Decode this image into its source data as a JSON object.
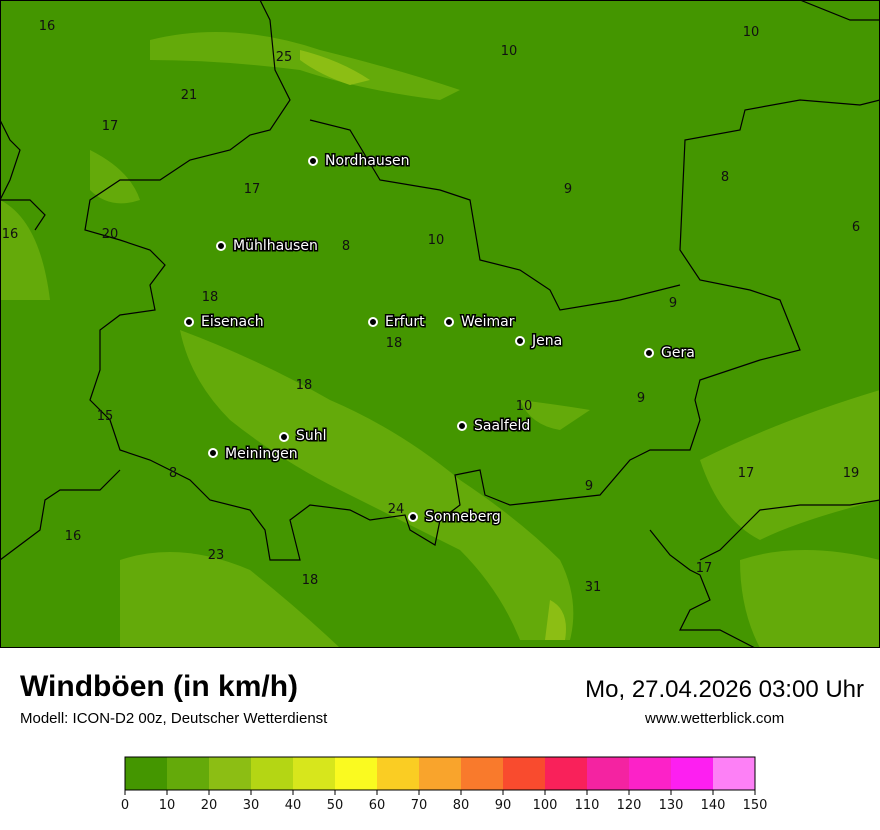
{
  "title": "Windböen (in km/h)",
  "model": "Modell: ICON-D2 00z, Deutscher Wetterdienst",
  "datetime": "Mo, 27.04.2026 03:00 Uhr",
  "website": "www.wetterblick.com",
  "cities": [
    {
      "name": "Nordhausen"
    },
    {
      "name": "Mühlhausen"
    },
    {
      "name": "Eisenach"
    },
    {
      "name": "Erfurt"
    },
    {
      "name": "Weimar"
    },
    {
      "name": "Jena"
    },
    {
      "name": "Gera"
    },
    {
      "name": "Saalfeld"
    },
    {
      "name": "Suhl"
    },
    {
      "name": "Meiningen"
    },
    {
      "name": "Sonneberg"
    }
  ],
  "values": [
    "16",
    "10",
    "10",
    "25",
    "21",
    "17",
    "17",
    "9",
    "8",
    "16",
    "20",
    "8",
    "10",
    "6",
    "18",
    "9",
    "18",
    "18",
    "9",
    "15",
    "10",
    "8",
    "17",
    "19",
    "9",
    "24",
    "16",
    "23",
    "18",
    "17",
    "31"
  ],
  "legend": {
    "ticks": [
      "0",
      "10",
      "20",
      "30",
      "40",
      "50",
      "60",
      "70",
      "80",
      "90",
      "100",
      "110",
      "120",
      "130",
      "140",
      "150"
    ],
    "colors": [
      "#449600",
      "#64aa0a",
      "#8cbe14",
      "#b4d614",
      "#d7e61c",
      "#fafa20",
      "#facd23",
      "#f9a42c",
      "#f97a2c",
      "#f94b2e",
      "#f9215a",
      "#f423a1",
      "#fc22c8",
      "#fd1ff1",
      "#fd80f6"
    ]
  }
}
